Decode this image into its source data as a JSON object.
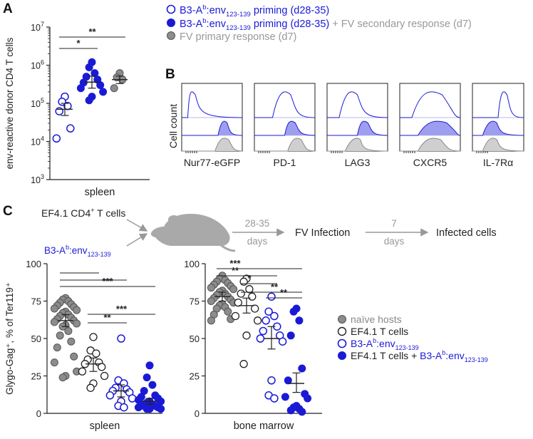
{
  "panel_labels": {
    "a": "A",
    "b": "B",
    "c": "C"
  },
  "colors": {
    "blue": "#1a1ad6",
    "grey": "#8c8c8c",
    "light_grey": "#b5b5b5",
    "black": "#222222",
    "purple_fill": "#9e9ef0",
    "hist_grey_fill": "#cfcfcf"
  },
  "legend_top": {
    "row1": {
      "prefix": "B3-A",
      "sup": "b",
      "mid": ":env",
      "sub": "123-139",
      "suffix": " priming (d28-35)"
    },
    "row2": {
      "prefix": "B3-A",
      "sup": "b",
      "mid": ":env",
      "sub": "123-139",
      "suffix": " priming (d28-35)",
      "extra": " + FV secondary response (d7)"
    },
    "row3": {
      "text": "FV primary response (d7)"
    }
  },
  "panel_b": {
    "ylabel": "Cell count",
    "markers": [
      "Nur77-eGFP",
      "PD-1",
      "LAG3",
      "CXCR5",
      "IL-7Rα"
    ]
  },
  "panel_c_schematic": {
    "input1": {
      "prefix": "EF4.1 CD4",
      "sup": "+",
      "suffix": " T cells"
    },
    "input2": {
      "prefix": "B3-A",
      "sup": "b",
      "mid": ":env",
      "sub": "123-139"
    },
    "step1_top": "28-35",
    "step1_bottom": "days",
    "step2": "FV Infection",
    "step3_top": "7",
    "step3_bottom": "days",
    "step4": "Infected cells"
  },
  "legend_c": {
    "item1": "naïve hosts",
    "item2": "EF4.1 T cells",
    "item3": {
      "prefix": "B3-A",
      "sup": "b",
      "mid": ":env",
      "sub": "123-139"
    },
    "item4": {
      "lead": "EF4.1 T cells + ",
      "prefix": "B3-A",
      "sup": "b",
      "mid": ":env",
      "sub": "123-139"
    }
  },
  "chart_data": [
    {
      "id": "panel-a",
      "type": "scatter",
      "scale": "log10",
      "ylabel": "env-reactive donor CD4 T cells",
      "xlabel": "spleen",
      "ylim": [
        1000,
        10000000
      ],
      "yticks": [
        {
          "value": 1000,
          "base": "10",
          "exp": "3"
        },
        {
          "value": 10000,
          "base": "10",
          "exp": "4"
        },
        {
          "value": 100000,
          "base": "10",
          "exp": "5"
        },
        {
          "value": 1000000,
          "base": "10",
          "exp": "6"
        },
        {
          "value": 10000000,
          "base": "10",
          "exp": "7"
        }
      ],
      "series": [
        {
          "name": "priming",
          "style": "open-blue",
          "mean": 70000,
          "sem_low": 48000,
          "sem_high": 100000,
          "values": [
            150000,
            110000,
            85000,
            62000,
            22000,
            12000
          ]
        },
        {
          "name": "priming + secondary",
          "style": "filled-blue",
          "mean": 360000,
          "sem_low": 250000,
          "sem_high": 520000,
          "values": [
            1200000,
            880000,
            620000,
            500000,
            420000,
            350000,
            300000,
            250000,
            200000,
            150000,
            120000
          ]
        },
        {
          "name": "primary",
          "style": "filled-grey",
          "mean": 420000,
          "sem_low": 330000,
          "sem_high": 520000,
          "values": [
            620000,
            480000,
            420000,
            250000
          ]
        }
      ],
      "significance": [
        {
          "from": 0,
          "to": 1,
          "label": "*"
        },
        {
          "from": 0,
          "to": 2,
          "label": "**"
        }
      ]
    },
    {
      "id": "panel-c-spleen",
      "type": "scatter",
      "ylabel": "Glygo-Gag⁺, % of Ter119⁺",
      "xlabel": "spleen",
      "ylim": [
        0,
        100
      ],
      "yticks": [
        0,
        25,
        50,
        75,
        100
      ],
      "series": [
        {
          "name": "naïve hosts",
          "style": "filled-grey",
          "mean": 62,
          "sem_low": 58,
          "sem_high": 66,
          "values": [
            77,
            76,
            75,
            74,
            73,
            72,
            71,
            70,
            69,
            68,
            67,
            66,
            65,
            64,
            63,
            62,
            61,
            60,
            59,
            58,
            55,
            52,
            48,
            44,
            38,
            34,
            28,
            25,
            24
          ]
        },
        {
          "name": "EF4.1 T cells",
          "style": "open-black",
          "mean": 33,
          "sem_low": 28,
          "sem_high": 37,
          "values": [
            51,
            42,
            40,
            36,
            34,
            33,
            31,
            28,
            25,
            20,
            17
          ]
        },
        {
          "name": "B3-Ab:env123-139",
          "style": "open-blue",
          "mean": 15,
          "sem_low": 11,
          "sem_high": 19,
          "values": [
            50,
            22,
            20,
            17,
            16,
            15,
            14,
            12,
            10,
            8,
            5,
            4
          ]
        },
        {
          "name": "EF4.1 T cells + B3-Ab:env123-139",
          "style": "filled-blue",
          "mean": 8,
          "sem_low": 6,
          "sem_high": 10,
          "values": [
            32,
            24,
            19,
            15,
            12,
            11,
            10,
            9,
            8,
            8,
            7,
            6,
            6,
            5,
            5,
            4,
            4,
            3,
            3,
            3
          ]
        }
      ],
      "significance": [
        {
          "from": 0,
          "to": 1,
          "label": ""
        },
        {
          "from": 0,
          "to": 2,
          "label": ""
        },
        {
          "from": 0,
          "to": 3,
          "label": "***"
        },
        {
          "from": 1,
          "to": 3,
          "label": "***"
        },
        {
          "from": 1,
          "to": 2,
          "label": "**"
        }
      ]
    },
    {
      "id": "panel-c-bm",
      "type": "scatter",
      "xlabel": "bone marrow",
      "ylim": [
        0,
        100
      ],
      "yticks": [
        0,
        25,
        50,
        75,
        100
      ],
      "series": [
        {
          "name": "naïve hosts",
          "style": "filled-grey",
          "mean": 78,
          "sem_low": 75,
          "sem_high": 81,
          "values": [
            92,
            90,
            89,
            88,
            87,
            86,
            85,
            84,
            83,
            82,
            81,
            80,
            79,
            78,
            77,
            76,
            75,
            74,
            73,
            72,
            71,
            70,
            68,
            66,
            63,
            62
          ]
        },
        {
          "name": "EF4.1 T cells",
          "style": "open-black",
          "mean": 72,
          "sem_low": 67,
          "sem_high": 77,
          "values": [
            90,
            88,
            83,
            80,
            78,
            74,
            70,
            65,
            62,
            52,
            33
          ]
        },
        {
          "name": "B3-Ab:env123-139",
          "style": "open-blue",
          "mean": 50,
          "sem_low": 43,
          "sem_high": 58,
          "values": [
            78,
            68,
            65,
            62,
            58,
            55,
            52,
            50,
            48,
            22,
            12,
            10
          ]
        },
        {
          "name": "EF4.1 T cells + B3-Ab:env123-139",
          "style": "filled-blue",
          "mean": 20,
          "sem_low": 14,
          "sem_high": 27,
          "values": [
            70,
            68,
            62,
            52,
            30,
            22,
            13,
            11,
            10,
            5,
            4,
            3,
            2,
            1
          ]
        }
      ],
      "significance": [
        {
          "from": 0,
          "to": 3,
          "label": "***"
        },
        {
          "from": 0,
          "to": 2,
          "label": "**"
        },
        {
          "from": 1,
          "to": 2,
          "label": "*"
        },
        {
          "from": 1,
          "to": 3,
          "label": "**"
        },
        {
          "from": 2,
          "to": 3,
          "label": "**"
        }
      ]
    }
  ]
}
